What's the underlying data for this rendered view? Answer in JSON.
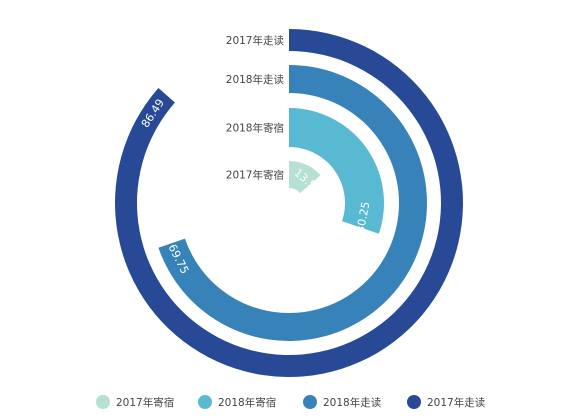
{
  "chart_data": {
    "type": "polar-bar",
    "max": 100,
    "series": [
      {
        "name": "2017年寄宿",
        "value": 13.51,
        "color": "#b5e0d3",
        "label_color": "#ffffff"
      },
      {
        "name": "2018年寄宿",
        "value": 30.25,
        "color": "#5ab9d2",
        "label_color": "#ffffff"
      },
      {
        "name": "2018年走读",
        "value": 69.75,
        "color": "#3783b9",
        "label_color": "#ffffff"
      },
      {
        "name": "2017年走读",
        "value": 86.49,
        "color": "#284a96",
        "label_color": "#ffffff"
      }
    ],
    "legend": {
      "placement": "bottom",
      "items": [
        "2017年寄宿",
        "2018年寄宿",
        "2018年走读",
        "2017年走读"
      ]
    },
    "axis_label_color": "#444444"
  }
}
